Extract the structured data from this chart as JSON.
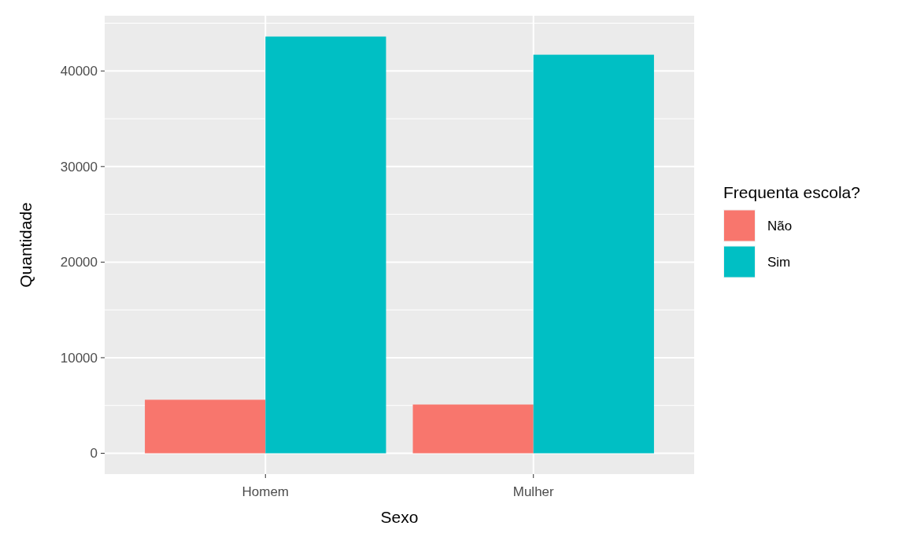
{
  "chart_data": {
    "type": "bar",
    "xlabel": "Sexo",
    "ylabel": "Quantidade",
    "legend_title": "Frequenta escola?",
    "categories": [
      "Homem",
      "Mulher"
    ],
    "series": [
      {
        "name": "Não",
        "color": "#f8766d",
        "values": [
          5600,
          5100
        ]
      },
      {
        "name": "Sim",
        "color": "#00bfc4",
        "values": [
          43600,
          41700
        ]
      }
    ],
    "ylim": [
      -2180,
      45780
    ],
    "yticks": [
      0,
      10000,
      20000,
      30000,
      40000
    ],
    "grid": true,
    "legend": "right"
  }
}
